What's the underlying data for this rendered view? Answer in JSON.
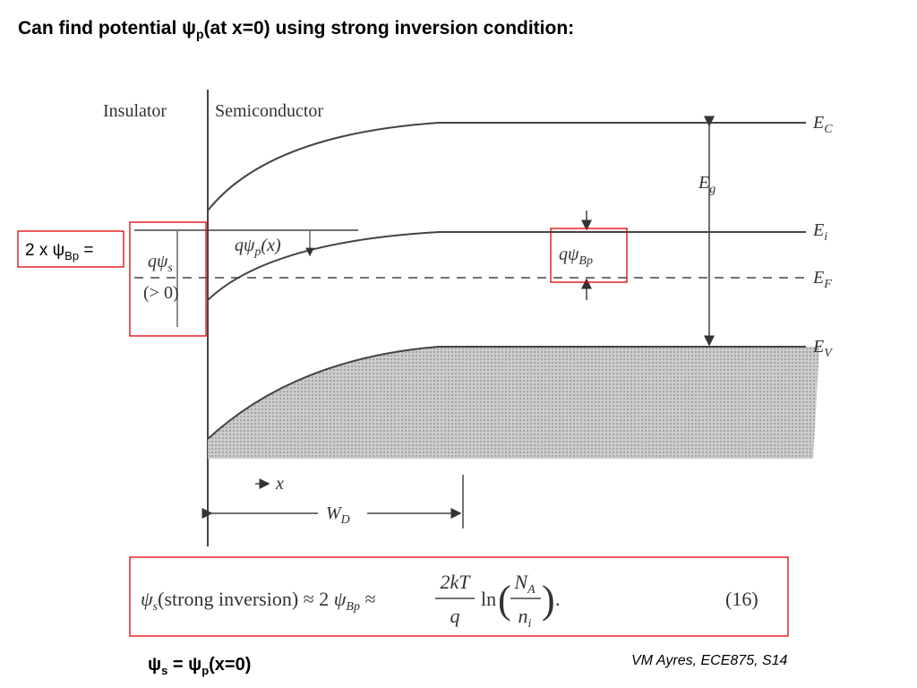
{
  "title": {
    "before": "Can find potential ψ",
    "sub": "p",
    "after": "(at x=0) using strong inversion condition:"
  },
  "callout": {
    "before": "2 x ψ",
    "sub": "Bp",
    "after": " ="
  },
  "diagram": {
    "insulator": "Insulator",
    "semiconductor": "Semiconductor",
    "bands": [
      {
        "main": "E",
        "sub": "C"
      },
      {
        "main": "E",
        "sub": "i"
      },
      {
        "main": "E",
        "sub": "F"
      },
      {
        "main": "E",
        "sub": "V"
      }
    ],
    "gap": {
      "main": "E",
      "sub": "g"
    },
    "surface_potential": {
      "main": "qψ",
      "sub": "s",
      "note": "(> 0)"
    },
    "potential_x": {
      "main": "qψ",
      "sub": "p",
      "arg": "(x)"
    },
    "bulk_potential": {
      "main": "qψ",
      "sub": "Bp"
    },
    "x_axis": "x",
    "depletion": {
      "main": "W",
      "sub": "D"
    }
  },
  "equation": {
    "lhs": {
      "main": "ψ",
      "sub": "s",
      "text": "(strong inversion) ≈ 2 "
    },
    "mid": {
      "main": "ψ",
      "sub": "Bp",
      "text": " ≈ "
    },
    "frac": {
      "num": "2kT",
      "den": "q"
    },
    "ln": "ln",
    "paren_open": "(",
    "paren_close": ")",
    "ratio": {
      "num": {
        "main": "N",
        "sub": "A"
      },
      "den": {
        "main": "n",
        "sub": "i"
      }
    },
    "period": ".",
    "number": "(16)"
  },
  "footer": {
    "a": "ψ",
    "a_sub": "s",
    "eq": " = ψ",
    "b_sub": "p",
    "after": "(x=0)"
  },
  "credit": "VM Ayres, ECE875, S14"
}
